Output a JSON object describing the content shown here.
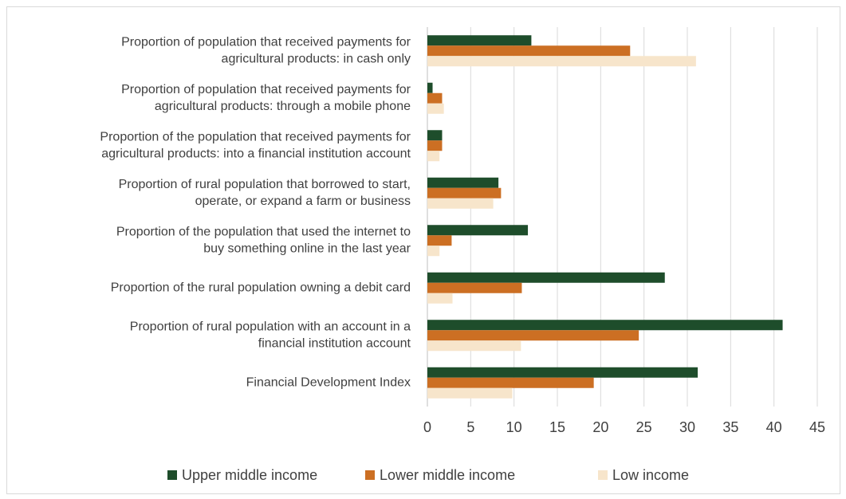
{
  "chart_data": {
    "type": "hbar",
    "categories": [
      [
        "Proportion of population  that received payments for",
        "agricultural products: in cash only"
      ],
      [
        "Proportion of population  that received payments for",
        "agricultural products: through a mobile phone"
      ],
      [
        "Proportion of the population that received payments for",
        "agricultural products: into a financial institution account"
      ],
      [
        "Proportion of rural population that borrowed to start,",
        "operate, or expand a farm or business"
      ],
      [
        "Proportion of the population that used the internet to",
        "buy something online in the last year"
      ],
      [
        "Proportion of the rural population owning a debit card"
      ],
      [
        "Proportion of rural population with an account in a",
        "financial institution account"
      ],
      [
        "Financial Development Index"
      ]
    ],
    "series": [
      {
        "name": "Upper middle income",
        "color": "#1e4d2b",
        "values": [
          12.0,
          0.6,
          1.7,
          8.2,
          11.6,
          27.4,
          41.0,
          31.2
        ]
      },
      {
        "name": "Lower middle income",
        "color": "#cc6f23",
        "values": [
          23.4,
          1.7,
          1.7,
          8.5,
          2.8,
          10.9,
          24.4,
          19.2
        ]
      },
      {
        "name": "Low income",
        "color": "#f7e5cb",
        "values": [
          31.0,
          1.9,
          1.4,
          7.6,
          1.4,
          2.9,
          10.8,
          9.8
        ]
      }
    ],
    "xlim": [
      0,
      45
    ],
    "xticks": [
      0,
      5,
      10,
      15,
      20,
      25,
      30,
      35,
      40,
      45
    ],
    "grid": true,
    "legend": "bottom"
  }
}
